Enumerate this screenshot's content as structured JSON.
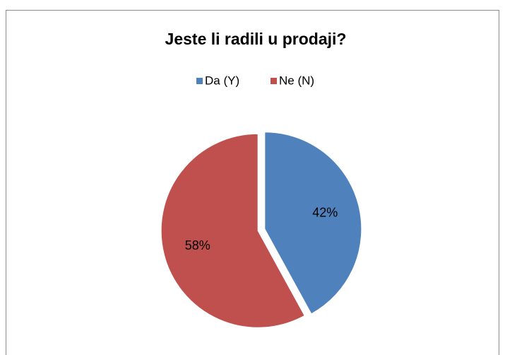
{
  "chart_data": {
    "type": "pie",
    "title": "Jeste li radili u prodaji?",
    "categories": [
      "Da (Y)",
      "Ne (N)"
    ],
    "values": [
      42,
      58
    ],
    "value_labels": [
      "42%",
      "58%"
    ],
    "colors": [
      "#4f81bd",
      "#c0504d"
    ],
    "legend": "top"
  }
}
